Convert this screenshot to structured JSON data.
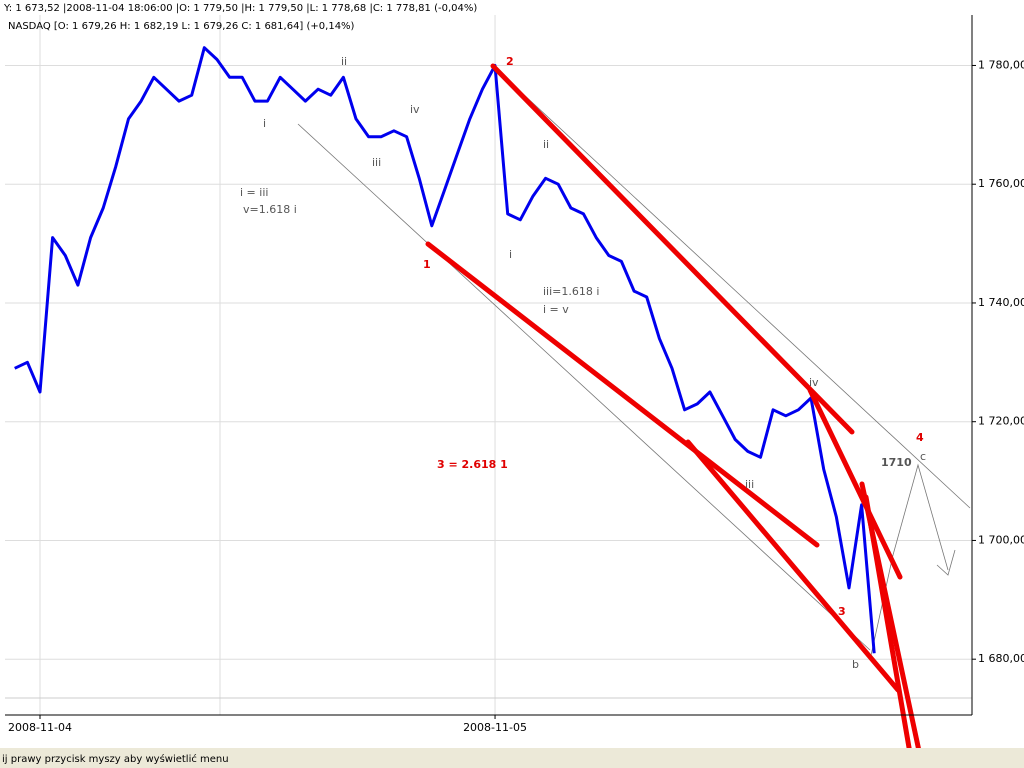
{
  "header": {
    "cursor": "Y: 1 673,52 |2008-11-04 18:06:00 |O: 1 779,50 |H: 1 779,50 |L: 1 778,68 |C: 1 778,81 (-0,04%)",
    "instrument": "NASDAQ [O: 1 679,26  H: 1 682,19  L: 1 679,26  C: 1 681,64] (+0,14%)"
  },
  "status": "ij prawy przycisk myszy aby wyświetlić menu",
  "annotations": [
    "ii",
    "i",
    "iv",
    "iii",
    "i = iii",
    "v=1.618 i",
    "1",
    "2",
    "ii",
    "i",
    "iii=1.618 i",
    "i = v",
    "iv",
    "iii",
    "3 = 2.618 1",
    "3",
    "b",
    "1710",
    "c",
    "4"
  ],
  "chart_data": {
    "type": "line",
    "categories": [
      null,
      null,
      "2008-11-04",
      null,
      null,
      null,
      null,
      null,
      null,
      null,
      null,
      null,
      null,
      null,
      null,
      null,
      null,
      null,
      null,
      null,
      null,
      null,
      null,
      null,
      null,
      null,
      null,
      null,
      null,
      null,
      null,
      null,
      null,
      null,
      null,
      null,
      null,
      null,
      "2008-11-05",
      null,
      null,
      null,
      null,
      null,
      null,
      null,
      null,
      null,
      null,
      null,
      null,
      null,
      null,
      null,
      null,
      null,
      null,
      null,
      null,
      null,
      null,
      null,
      null,
      null,
      null,
      null,
      null,
      null,
      null
    ],
    "series": [
      {
        "name": "NASDAQ",
        "color": "#0000ee",
        "values": [
          1729,
          1730,
          1725,
          1751,
          1748,
          1743,
          1751,
          1756,
          1763,
          1771,
          1774,
          1778,
          1776,
          1774,
          1775,
          1783,
          1781,
          1778,
          1778,
          1774,
          1774,
          1778,
          1776,
          1774,
          1776,
          1775,
          1778,
          1771,
          1768,
          1768,
          1769,
          1768,
          1761,
          1753,
          1759,
          1765,
          1771,
          1776,
          1780,
          1755,
          1754,
          1758,
          1761,
          1760,
          1756,
          1755,
          1751,
          1748,
          1747,
          1742,
          1741,
          1734,
          1729,
          1722,
          1723,
          1725,
          1721,
          1717,
          1715,
          1714,
          1722,
          1721,
          1722,
          1724,
          1712,
          1704,
          1692,
          1706,
          1681
        ]
      }
    ],
    "ylim": [
      1670.6,
      1788.5
    ],
    "yticks": [
      {
        "value": 1680,
        "label": "1 680,00"
      },
      {
        "value": 1700,
        "label": "1 700,00"
      },
      {
        "value": 1720,
        "label": "1 720,00"
      },
      {
        "value": 1740,
        "label": "1 740,00"
      },
      {
        "value": 1760,
        "label": "1 760,00"
      },
      {
        "value": 1780,
        "label": "1 780,00"
      }
    ],
    "grid": true
  }
}
